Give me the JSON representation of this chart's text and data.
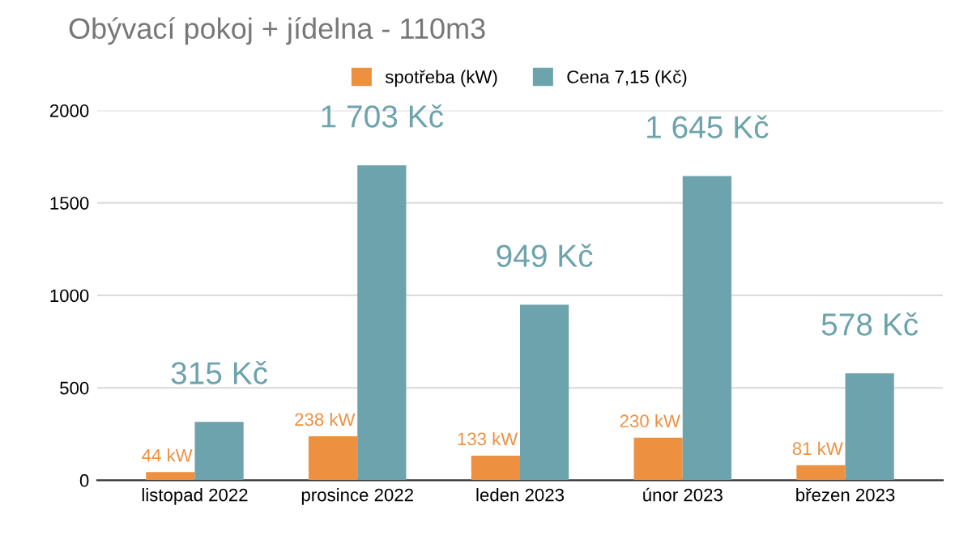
{
  "chart_data": {
    "type": "bar",
    "title": "Obývací pokoj + jídelna - 110m3",
    "categories": [
      "listopad 2022",
      "prosince 2022",
      "leden 2023",
      "únor 2023",
      "březen 2023"
    ],
    "series": [
      {
        "name": "spotřeba (kW)",
        "color": "#ed9140",
        "values": [
          44,
          238,
          133,
          230,
          81
        ],
        "value_labels": [
          "44 kW",
          "238 kW",
          "133 kW",
          "230 kW",
          "81 kW"
        ]
      },
      {
        "name": "Cena 7,15 (Kč)",
        "color": "#6da3ad",
        "values": [
          315,
          1703,
          949,
          1645,
          578
        ],
        "value_labels": [
          "315 Kč",
          "1 703 Kč",
          "949 Kč",
          "1 645 Kč",
          "578 Kč"
        ]
      }
    ],
    "ylim": [
      0,
      2000
    ],
    "yticks": [
      0,
      500,
      1000,
      1500,
      2000
    ],
    "grid": "y",
    "legend": "top"
  }
}
